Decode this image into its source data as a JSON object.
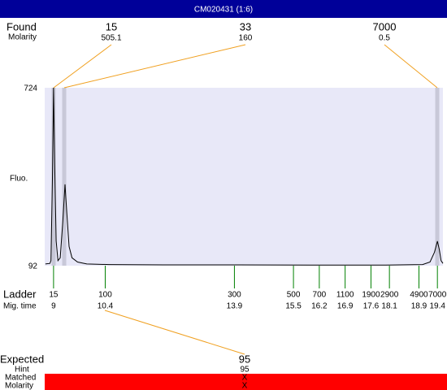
{
  "header": {
    "title": "CM020431 (1:6)"
  },
  "found": {
    "label": "Found",
    "sub_label": "Molarity",
    "peaks": [
      {
        "size": 15,
        "molarity": 505.1
      },
      {
        "size": 33,
        "molarity": 160
      },
      {
        "size": 7000,
        "molarity": 0.5
      }
    ]
  },
  "chart_data": {
    "type": "line",
    "y_label": "Fluo.",
    "xlim": [
      8.76,
      19.55
    ],
    "ylim": [
      92,
      724
    ],
    "yticks": [
      92,
      724
    ],
    "x": [
      8.78,
      8.9,
      8.93,
      8.97,
      9.0,
      9.03,
      9.07,
      9.12,
      9.18,
      9.25,
      9.31,
      9.36,
      9.42,
      9.5,
      9.65,
      9.9,
      10.5,
      12,
      14,
      16,
      18,
      19.0,
      19.2,
      19.32,
      19.4,
      19.45,
      19.5,
      19.55
    ],
    "series": [
      {
        "color": "#000000",
        "values": [
          98,
          100,
          110,
          400,
          724,
          450,
          180,
          110,
          120,
          250,
          381,
          280,
          160,
          120,
          105,
          98,
          96,
          95,
          95,
          94,
          94,
          96,
          105,
          140,
          179,
          150,
          110,
          100
        ]
      }
    ]
  },
  "ladder": {
    "label": "Ladder",
    "time_label": "Mig. time",
    "sizes": [
      15,
      100,
      300,
      500,
      700,
      1100,
      1900,
      2900,
      4900,
      7000
    ],
    "times": [
      9,
      10.4,
      13.9,
      15.5,
      16.2,
      16.9,
      17.6,
      18.1,
      18.9,
      19.4
    ]
  },
  "expected": {
    "label": "Expected",
    "value": 95,
    "hint_label": "Hint",
    "hint": 95,
    "matched_label": "Matched",
    "matched": "X",
    "molarity_label": "Molarity",
    "molarity": "X"
  }
}
